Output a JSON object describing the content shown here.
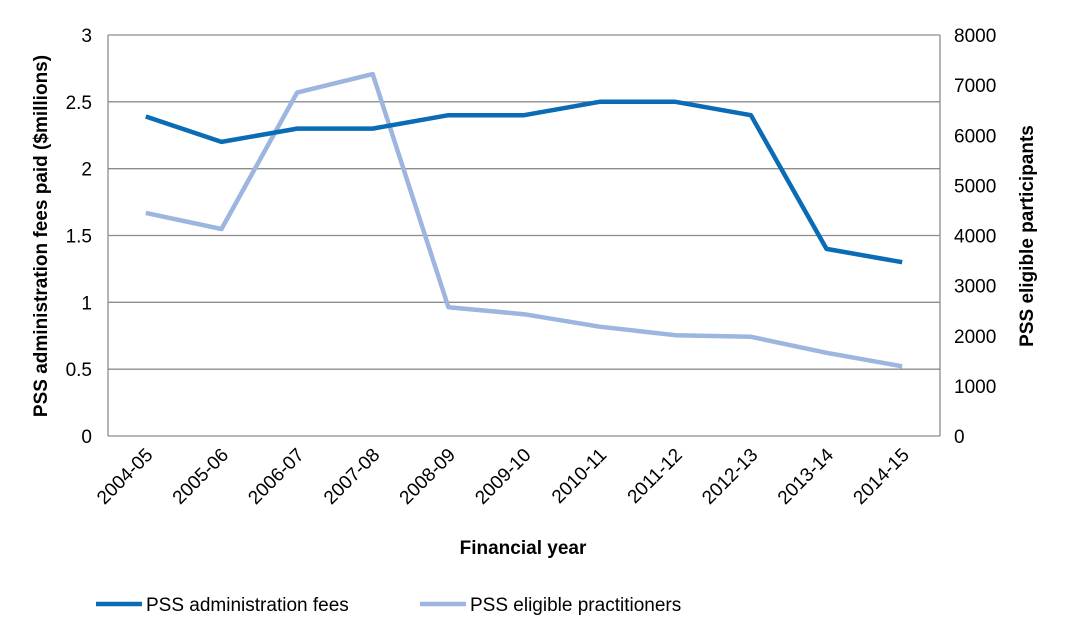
{
  "chart_data": {
    "type": "line",
    "x": [
      "2004-05",
      "2005-06",
      "2006-07",
      "2007-08",
      "2008-09",
      "2009-10",
      "2010-11",
      "2011-12",
      "2012-13",
      "2013-14",
      "2014-15"
    ],
    "xlabel": "Financial year",
    "y_left": {
      "label": "PSS administration fees paid ($millions)",
      "range": [
        0,
        3
      ],
      "ticks": [
        "0",
        "0.5",
        "1",
        "1.5",
        "2",
        "2.5",
        "3"
      ],
      "tick_values": [
        0,
        0.5,
        1,
        1.5,
        2,
        2.5,
        3
      ]
    },
    "y_right": {
      "label": "PSS eligible participants",
      "range": [
        0,
        8000
      ],
      "ticks": [
        "0",
        "1000",
        "2000",
        "3000",
        "4000",
        "5000",
        "6000",
        "7000",
        "8000"
      ],
      "tick_values": [
        0,
        1000,
        2000,
        3000,
        4000,
        5000,
        6000,
        7000,
        8000
      ]
    },
    "series": [
      {
        "name": "PSS administration fees",
        "axis": "left",
        "color": "#0a6cb4",
        "values": [
          2.39,
          2.2,
          2.3,
          2.3,
          2.4,
          2.4,
          2.5,
          2.5,
          2.4,
          1.4,
          1.3
        ]
      },
      {
        "name": "PSS eligible practitioners",
        "axis": "right",
        "color": "#9cb6df",
        "values": [
          4450,
          4130,
          6850,
          7220,
          2570,
          2430,
          2180,
          2010,
          1980,
          1660,
          1390
        ]
      }
    ],
    "grid": true,
    "legend_position": "bottom"
  }
}
